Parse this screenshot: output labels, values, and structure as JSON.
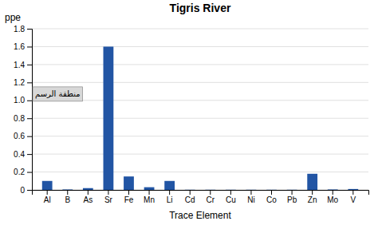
{
  "chart_data": {
    "type": "bar",
    "title": "Tigris River",
    "xlabel": "Trace Element",
    "ylabel": "ppe",
    "categories": [
      "Al",
      "B",
      "As",
      "Sr",
      "Fe",
      "Mn",
      "Li",
      "Cd",
      "Cr",
      "Cu",
      "Ni",
      "Co",
      "Pb",
      "Zn",
      "Mo",
      "V"
    ],
    "values": [
      0.1,
      0.005,
      0.02,
      1.6,
      0.15,
      0.03,
      0.1,
      0.002,
      0.002,
      0.002,
      0.002,
      0.002,
      0.002,
      0.18,
      0.005,
      0.01
    ],
    "color": "#2255A4",
    "ylim": [
      0,
      1.8
    ],
    "yticks": [
      0,
      0.2,
      0.4,
      0.6,
      0.8,
      {
        "value": 1,
        "label": "1.0"
      },
      1.2,
      1.4,
      1.6,
      1.8
    ],
    "grid": true,
    "annotations": [
      "منطقة الرسم"
    ]
  }
}
